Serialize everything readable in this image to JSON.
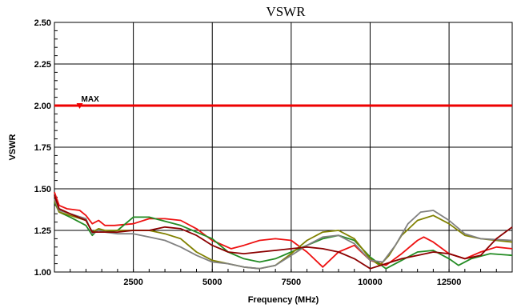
{
  "chart_data": {
    "type": "line",
    "title": "VSWR",
    "xlabel": "Frequency (MHz)",
    "ylabel": "VSWR",
    "xlim": [
      0,
      14500
    ],
    "ylim": [
      1.0,
      2.5
    ],
    "xticks": [
      2500,
      5000,
      7500,
      10000,
      12500
    ],
    "xtick_labels": [
      "2500",
      "5000",
      "7500",
      "10000",
      "12500"
    ],
    "yticks": [
      1.0,
      1.25,
      1.5,
      1.75,
      2.0,
      2.25,
      2.5
    ],
    "ytick_labels": [
      "1.00",
      "1.25",
      "1.50",
      "1.75",
      "2.00",
      "2.25",
      "2.50"
    ],
    "grid": true,
    "annotations": [
      {
        "text": "MAX",
        "x": 800,
        "y": 2.0
      }
    ],
    "series": [
      {
        "color": "#ee1111",
        "points": [
          [
            0,
            1.48
          ],
          [
            150,
            1.4
          ],
          [
            400,
            1.38
          ],
          [
            800,
            1.37
          ],
          [
            1000,
            1.34
          ],
          [
            1200,
            1.29
          ],
          [
            1400,
            1.31
          ],
          [
            1600,
            1.28
          ],
          [
            1900,
            1.28
          ],
          [
            2500,
            1.29
          ],
          [
            3000,
            1.32
          ],
          [
            3500,
            1.32
          ],
          [
            4000,
            1.31
          ],
          [
            4500,
            1.26
          ],
          [
            5000,
            1.19
          ],
          [
            5600,
            1.14
          ],
          [
            6000,
            1.16
          ],
          [
            6500,
            1.19
          ],
          [
            7000,
            1.2
          ],
          [
            7500,
            1.19
          ],
          [
            8000,
            1.12
          ],
          [
            8500,
            1.03
          ],
          [
            9000,
            1.12
          ],
          [
            9500,
            1.16
          ],
          [
            10000,
            1.07
          ],
          [
            10500,
            1.04
          ],
          [
            11000,
            1.11
          ],
          [
            11500,
            1.19
          ],
          [
            11700,
            1.21
          ],
          [
            12000,
            1.18
          ],
          [
            12500,
            1.11
          ],
          [
            13000,
            1.08
          ],
          [
            13500,
            1.12
          ],
          [
            14000,
            1.15
          ],
          [
            14500,
            1.14
          ]
        ]
      },
      {
        "color": "#228b22",
        "points": [
          [
            0,
            1.42
          ],
          [
            150,
            1.36
          ],
          [
            500,
            1.33
          ],
          [
            1000,
            1.28
          ],
          [
            1200,
            1.22
          ],
          [
            1400,
            1.26
          ],
          [
            1600,
            1.24
          ],
          [
            2000,
            1.25
          ],
          [
            2500,
            1.33
          ],
          [
            3000,
            1.33
          ],
          [
            4000,
            1.28
          ],
          [
            5000,
            1.2
          ],
          [
            5500,
            1.12
          ],
          [
            6000,
            1.08
          ],
          [
            6500,
            1.06
          ],
          [
            7000,
            1.08
          ],
          [
            7500,
            1.12
          ],
          [
            8000,
            1.16
          ],
          [
            8500,
            1.2
          ],
          [
            9000,
            1.22
          ],
          [
            9500,
            1.19
          ],
          [
            10000,
            1.09
          ],
          [
            10500,
            1.02
          ],
          [
            11000,
            1.07
          ],
          [
            11500,
            1.12
          ],
          [
            12000,
            1.13
          ],
          [
            12500,
            1.08
          ],
          [
            12800,
            1.04
          ],
          [
            13200,
            1.08
          ],
          [
            13800,
            1.11
          ],
          [
            14500,
            1.1
          ]
        ]
      },
      {
        "color": "#808000",
        "points": [
          [
            0,
            1.43
          ],
          [
            150,
            1.36
          ],
          [
            500,
            1.34
          ],
          [
            1000,
            1.31
          ],
          [
            1200,
            1.24
          ],
          [
            1400,
            1.26
          ],
          [
            1600,
            1.25
          ],
          [
            2500,
            1.25
          ],
          [
            3000,
            1.25
          ],
          [
            3500,
            1.23
          ],
          [
            4000,
            1.2
          ],
          [
            4500,
            1.12
          ],
          [
            5000,
            1.07
          ],
          [
            5500,
            1.05
          ],
          [
            6000,
            1.03
          ],
          [
            6500,
            1.02
          ],
          [
            7000,
            1.04
          ],
          [
            7500,
            1.11
          ],
          [
            8000,
            1.19
          ],
          [
            8500,
            1.24
          ],
          [
            9000,
            1.25
          ],
          [
            9500,
            1.2
          ],
          [
            10000,
            1.08
          ],
          [
            10300,
            1.04
          ],
          [
            10600,
            1.1
          ],
          [
            11000,
            1.22
          ],
          [
            11500,
            1.31
          ],
          [
            12000,
            1.34
          ],
          [
            12500,
            1.29
          ],
          [
            13000,
            1.22
          ],
          [
            13500,
            1.2
          ],
          [
            14500,
            1.18
          ]
        ]
      },
      {
        "color": "#808080",
        "points": [
          [
            0,
            1.44
          ],
          [
            150,
            1.37
          ],
          [
            500,
            1.35
          ],
          [
            1000,
            1.32
          ],
          [
            1200,
            1.23
          ],
          [
            1400,
            1.25
          ],
          [
            1600,
            1.24
          ],
          [
            2000,
            1.23
          ],
          [
            2500,
            1.23
          ],
          [
            3000,
            1.21
          ],
          [
            3500,
            1.19
          ],
          [
            4000,
            1.15
          ],
          [
            4500,
            1.1
          ],
          [
            5000,
            1.06
          ],
          [
            5500,
            1.05
          ],
          [
            6000,
            1.03
          ],
          [
            6500,
            1.02
          ],
          [
            7000,
            1.04
          ],
          [
            7500,
            1.1
          ],
          [
            8000,
            1.16
          ],
          [
            8500,
            1.21
          ],
          [
            9000,
            1.22
          ],
          [
            9500,
            1.17
          ],
          [
            10000,
            1.07
          ],
          [
            10400,
            1.06
          ],
          [
            10800,
            1.16
          ],
          [
            11200,
            1.29
          ],
          [
            11600,
            1.36
          ],
          [
            12000,
            1.37
          ],
          [
            12500,
            1.31
          ],
          [
            13000,
            1.23
          ],
          [
            13500,
            1.2
          ],
          [
            14500,
            1.19
          ]
        ]
      },
      {
        "color": "#8b0000",
        "points": [
          [
            0,
            1.46
          ],
          [
            150,
            1.38
          ],
          [
            500,
            1.35
          ],
          [
            1000,
            1.31
          ],
          [
            1200,
            1.24
          ],
          [
            1600,
            1.24
          ],
          [
            2000,
            1.24
          ],
          [
            2500,
            1.25
          ],
          [
            3000,
            1.25
          ],
          [
            3500,
            1.27
          ],
          [
            4000,
            1.26
          ],
          [
            4500,
            1.22
          ],
          [
            5000,
            1.16
          ],
          [
            5500,
            1.12
          ],
          [
            6000,
            1.11
          ],
          [
            6500,
            1.12
          ],
          [
            7000,
            1.13
          ],
          [
            7500,
            1.14
          ],
          [
            8000,
            1.15
          ],
          [
            8500,
            1.14
          ],
          [
            9000,
            1.12
          ],
          [
            9500,
            1.08
          ],
          [
            10000,
            1.02
          ],
          [
            10500,
            1.05
          ],
          [
            11000,
            1.08
          ],
          [
            11500,
            1.1
          ],
          [
            12000,
            1.12
          ],
          [
            12500,
            1.11
          ],
          [
            13000,
            1.08
          ],
          [
            13500,
            1.1
          ],
          [
            14000,
            1.2
          ],
          [
            14500,
            1.27
          ]
        ]
      },
      {
        "color": "#ee0000",
        "width": 3,
        "points": [
          [
            0,
            2.0
          ],
          [
            14500,
            2.0
          ]
        ]
      }
    ]
  }
}
